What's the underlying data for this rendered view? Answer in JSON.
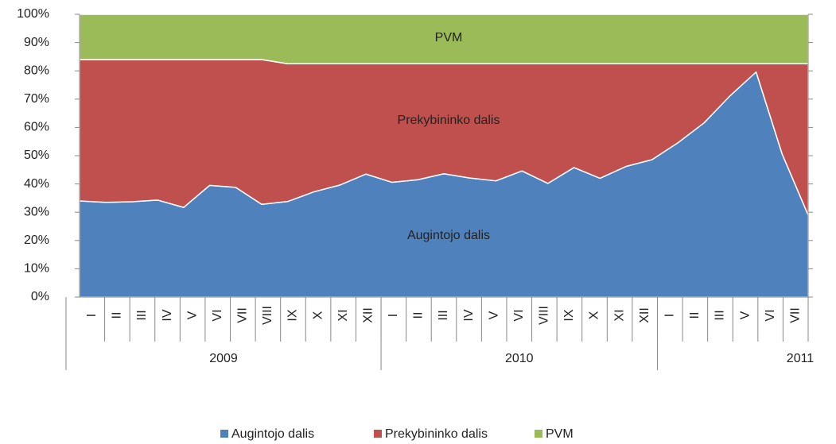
{
  "chart_data": {
    "type": "stacked_area",
    "groups": [
      {
        "name": "2009",
        "categories": [
          "I",
          "II",
          "III",
          "IV",
          "V",
          "VI",
          "VII",
          "VIII",
          "IX",
          "X",
          "XI",
          "XII"
        ]
      },
      {
        "name": "2010",
        "categories": [
          "I",
          "II",
          "III",
          "IV",
          "V",
          "VI",
          "VIII",
          "IX",
          "X",
          "XI",
          "XII"
        ]
      },
      {
        "name": "2011",
        "categories": [
          "I",
          "II",
          "III",
          "V",
          "VI",
          "VII"
        ]
      }
    ],
    "series": [
      {
        "name": "Augintojo dalis",
        "color": "#4f81bd",
        "values": [
          34,
          33.5,
          33.7,
          34.3,
          31.7,
          39.5,
          38.8,
          32.8,
          33.8,
          37.2,
          39.6,
          43.5,
          40.6,
          41.5,
          43.6,
          42.1,
          41.1,
          44.6,
          40.2,
          45.8,
          42,
          46.2,
          48.6,
          54.6,
          61.6,
          71.2,
          79.6,
          50.6,
          29
        ]
      },
      {
        "name": "Prekybininko dalis",
        "color": "#c0504d",
        "values": [
          50,
          50.5,
          50.3,
          49.7,
          52.3,
          44.5,
          45.2,
          51.2,
          48.7,
          45.3,
          42.9,
          39,
          41.9,
          41,
          38.9,
          40.4,
          41.4,
          37.9,
          42.3,
          36.7,
          40.5,
          36.3,
          33.9,
          27.9,
          20.9,
          11.3,
          2.9,
          31.9,
          53.5
        ]
      },
      {
        "name": "PVM",
        "color": "#9bbb59",
        "values": [
          16,
          16,
          16,
          16,
          16,
          16,
          16,
          16,
          17.5,
          17.5,
          17.5,
          17.5,
          17.5,
          17.5,
          17.5,
          17.5,
          17.5,
          17.5,
          17.5,
          17.5,
          17.5,
          17.5,
          17.5,
          17.5,
          17.5,
          17.5,
          17.5,
          17.5,
          17.5
        ]
      }
    ],
    "ylim": [
      0,
      100
    ],
    "yticks": [
      {
        "value": 0,
        "label": "0%"
      },
      {
        "value": 10,
        "label": "10%"
      },
      {
        "value": 20,
        "label": "20%"
      },
      {
        "value": 30,
        "label": "30%"
      },
      {
        "value": 40,
        "label": "40%"
      },
      {
        "value": 50,
        "label": "50%"
      },
      {
        "value": 60,
        "label": "60%"
      },
      {
        "value": 70,
        "label": "70%"
      },
      {
        "value": 80,
        "label": "80%"
      },
      {
        "value": 90,
        "label": "90%"
      },
      {
        "value": 100,
        "label": "100%"
      }
    ],
    "legend": "bottom"
  }
}
